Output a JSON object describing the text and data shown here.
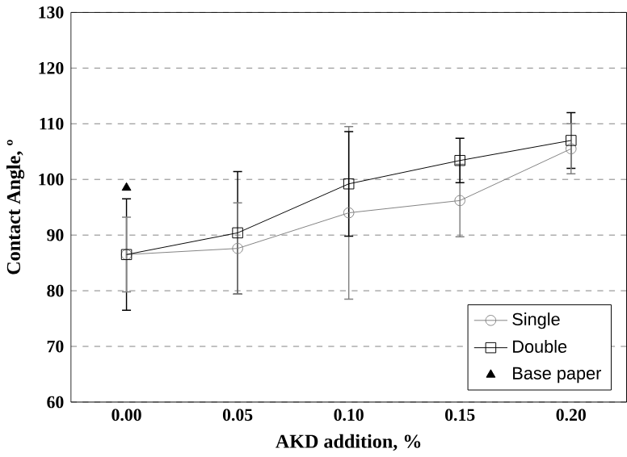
{
  "chart_data": {
    "type": "line",
    "xlabel": "AKD addition, %",
    "ylabel": "Contact Angle, º",
    "categories": [
      "0.00",
      "0.05",
      "0.10",
      "0.15",
      "0.20"
    ],
    "ylim": [
      60,
      130
    ],
    "yticks": [
      60,
      70,
      80,
      90,
      100,
      110,
      120,
      130
    ],
    "grid": "y",
    "legend": "bottom right",
    "series": [
      {
        "name": "Single",
        "color": "#808080",
        "marker": "circle",
        "values": [
          86.5,
          87.6,
          94.0,
          96.2,
          105.5
        ],
        "errors": [
          6.7,
          8.2,
          15.5,
          6.5,
          4.5
        ]
      },
      {
        "name": "Double",
        "color": "#000000",
        "marker": "square",
        "values": [
          86.5,
          90.4,
          99.2,
          103.4,
          107.0
        ],
        "errors": [
          10.0,
          11.0,
          9.4,
          4.0,
          5.0
        ]
      },
      {
        "name": "Base paper",
        "type": "scatter",
        "color": "#000000",
        "marker": "triangle",
        "x": [
          "0.00"
        ],
        "values": [
          98.5
        ]
      }
    ]
  }
}
